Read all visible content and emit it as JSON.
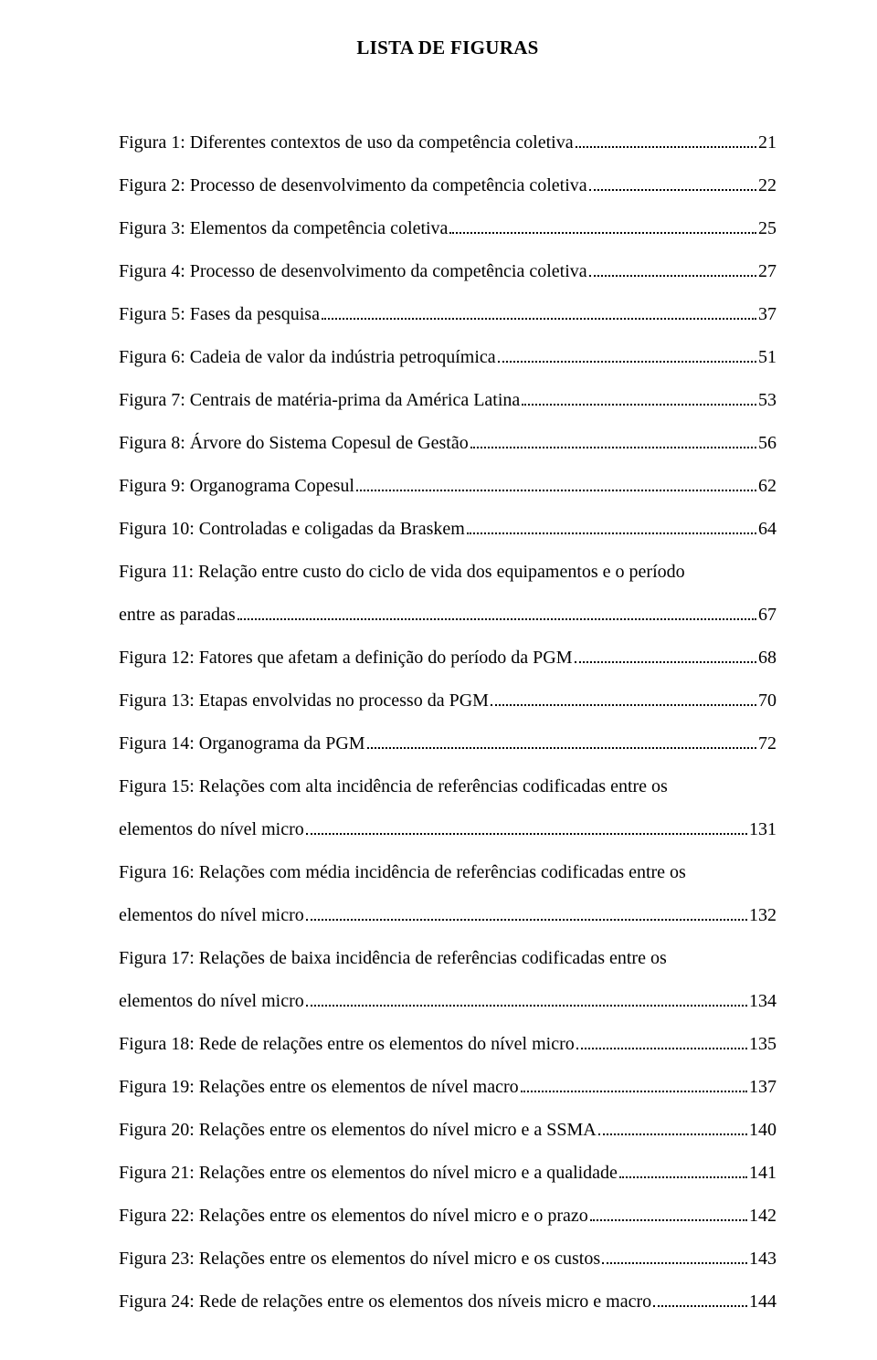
{
  "title": "LISTA DE FIGURAS",
  "entries": [
    {
      "label": "Figura 1: Diferentes contextos de uso da competência coletiva",
      "page": "21"
    },
    {
      "label": "Figura 2: Processo de desenvolvimento da competência coletiva",
      "page": "22"
    },
    {
      "label": "Figura 3: Elementos da competência coletiva",
      "page": "25"
    },
    {
      "label": "Figura 4: Processo de desenvolvimento da competência coletiva",
      "page": "27"
    },
    {
      "label": "Figura 5: Fases da pesquisa",
      "page": "37"
    },
    {
      "label": "Figura 6: Cadeia de valor da indústria petroquímica",
      "page": "51"
    },
    {
      "label": "Figura 7: Centrais de matéria-prima da América Latina",
      "page": "53"
    },
    {
      "label": "Figura 8: Árvore do Sistema Copesul de Gestão",
      "page": "56"
    },
    {
      "label": "Figura 9: Organograma Copesul",
      "page": "62"
    },
    {
      "label": "Figura 10: Controladas e coligadas da Braskem",
      "page": "64"
    },
    {
      "label_line1": "Figura 11: Relação entre custo do ciclo de vida dos equipamentos e o período",
      "label_line2": "entre as paradas",
      "page": "67",
      "wrap": true
    },
    {
      "label": "Figura 12: Fatores que afetam a definição do período da PGM",
      "page": "68"
    },
    {
      "label": "Figura 13: Etapas envolvidas no processo da PGM",
      "page": "70"
    },
    {
      "label": "Figura 14: Organograma da PGM",
      "page": "72"
    },
    {
      "label_line1": "Figura 15: Relações com alta incidência de referências codificadas entre os",
      "label_line2": "elementos do nível micro",
      "page": "131",
      "wrap": true
    },
    {
      "label_line1": "Figura 16: Relações com média incidência de referências codificadas entre os",
      "label_line2": "elementos do nível micro",
      "page": "132",
      "wrap": true
    },
    {
      "label_line1": "Figura 17: Relações de baixa incidência de referências codificadas entre os",
      "label_line2": "elementos do nível micro",
      "page": "134",
      "wrap": true
    },
    {
      "label": "Figura 18: Rede de relações entre os elementos do nível micro",
      "page": "135"
    },
    {
      "label": "Figura 19: Relações entre os elementos de nível macro",
      "page": "137"
    },
    {
      "label": "Figura 20: Relações entre os elementos do nível micro e a SSMA",
      "page": "140"
    },
    {
      "label": "Figura 21: Relações entre os elementos do nível micro e a qualidade",
      "page": "141"
    },
    {
      "label": "Figura 22: Relações entre os elementos do nível micro e o prazo",
      "page": "142"
    },
    {
      "label": "Figura 23: Relações entre os elementos do nível micro e os custos",
      "page": "143"
    },
    {
      "label": "Figura 24: Rede de relações entre os elementos dos níveis micro e macro",
      "page": "144"
    }
  ]
}
